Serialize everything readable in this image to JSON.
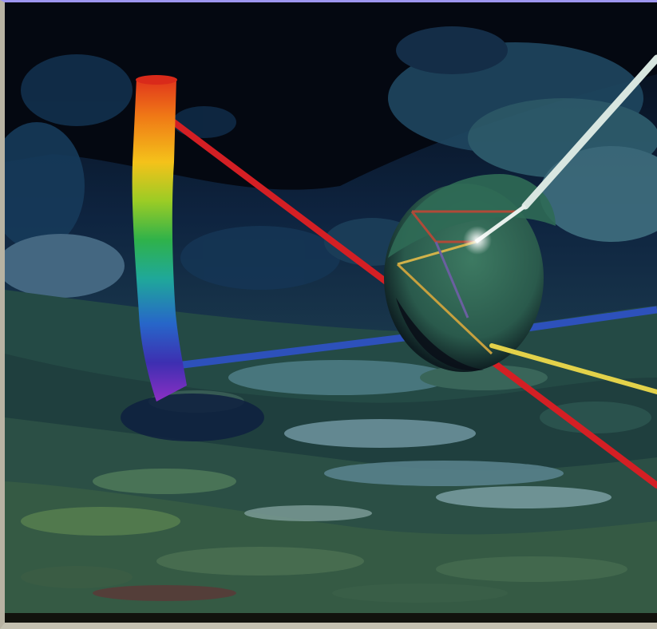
{
  "image": {
    "subject": "prism-light-spectrum-scene",
    "colors": {
      "sky_dark": "#050a14",
      "sky_blue": "#143a5e",
      "cloud_teal": "#2f5f6a",
      "cloud_light": "#6f8ea2",
      "ground_green": "#3e6a47",
      "ground_dark": "#1d3a3a",
      "beam_red": "#d41f24",
      "beam_white": "#d8e6e0",
      "beam_yellow": "#e3d24a",
      "beam_blue": "#2f52c8",
      "sphere_green": "#2f6a55",
      "spectrum": [
        "#e0341c",
        "#f07a16",
        "#f4c21a",
        "#9bcc25",
        "#2fb24a",
        "#1fa89a",
        "#2766c9",
        "#3d2fb1",
        "#8d2fc4"
      ]
    }
  }
}
